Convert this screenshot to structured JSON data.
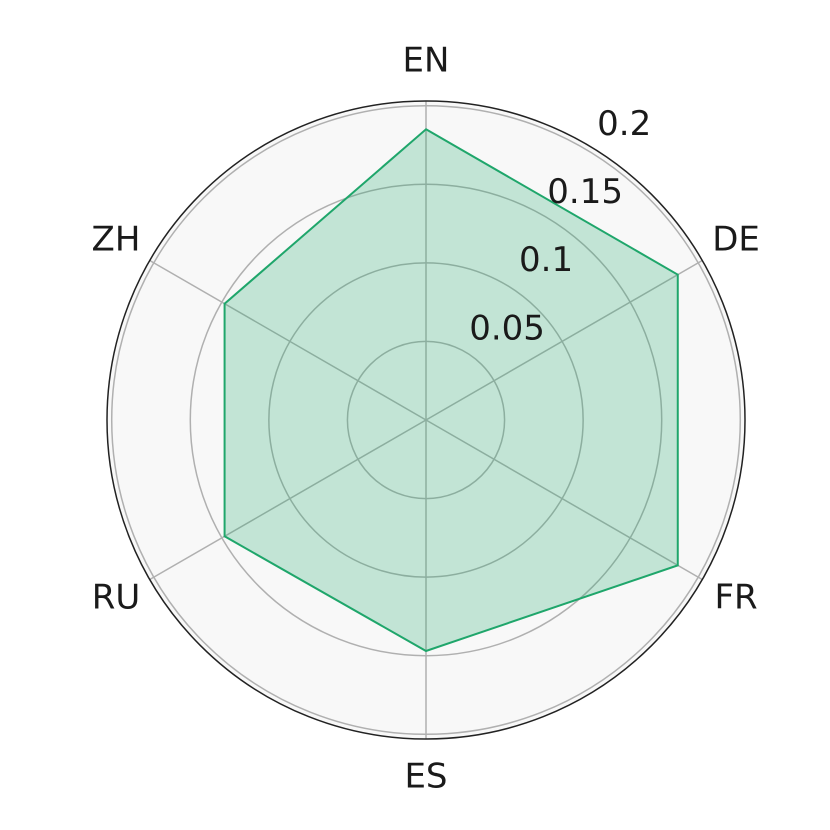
{
  "chart_data": {
    "type": "radar",
    "categories": [
      "EN",
      "DE",
      "FR",
      "ES",
      "RU",
      "ZH"
    ],
    "values": [
      0.185,
      0.185,
      0.185,
      0.147,
      0.148,
      0.148
    ],
    "color": "#1fa66b",
    "ylim": [
      0,
      0.203
    ],
    "yticks": [
      0.05,
      0.1,
      0.15,
      0.2
    ],
    "grid": true
  }
}
